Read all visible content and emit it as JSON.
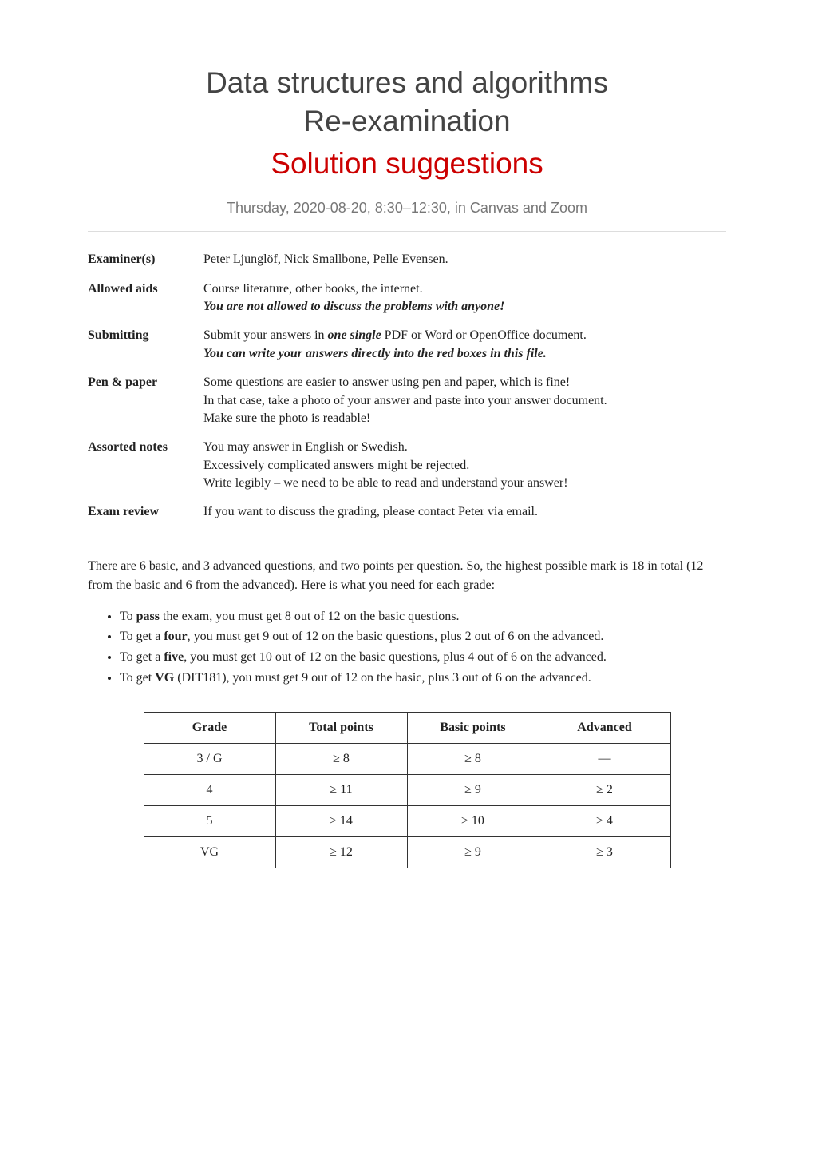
{
  "title": {
    "line1": "Data structures and algorithms",
    "line2": "Re-examination",
    "solution": "Solution suggestions"
  },
  "subtitle": "Thursday, 2020-08-20, 8:30–12:30, in Canvas and Zoom",
  "info": [
    {
      "label": "Examiner(s)",
      "lines": [
        {
          "plain": "Peter Ljunglöf, Nick Smallbone, Pelle Evensen."
        }
      ]
    },
    {
      "label": "Allowed aids",
      "lines": [
        {
          "plain": "Course literature, other books, the internet."
        },
        {
          "boldItalic": "You are not allowed to discuss the problems with anyone!"
        }
      ]
    },
    {
      "label": "Submitting",
      "lines": [
        {
          "prefix": "Submit your answers in ",
          "boldItalicInline": "one single",
          "suffix": " PDF or Word or OpenOffice document."
        },
        {
          "boldItalic": "You can write your answers directly into the red boxes in this file."
        }
      ]
    },
    {
      "label": "Pen & paper",
      "lines": [
        {
          "plain": "Some questions are easier to answer using pen and paper, which is fine!"
        },
        {
          "plain": "In that case, take a photo of your answer and paste into your answer document."
        },
        {
          "plain": "Make sure the photo is readable!"
        }
      ]
    },
    {
      "label": "Assorted notes",
      "lines": [
        {
          "plain": "You may answer in English or Swedish."
        },
        {
          "plain": "Excessively complicated answers might be rejected."
        },
        {
          "plain": "Write legibly – we need to be able to read and understand your answer!"
        }
      ]
    },
    {
      "label": "Exam review",
      "lines": [
        {
          "plain": "If you want to discuss the grading, please contact Peter via email."
        }
      ]
    }
  ],
  "description": "There are 6 basic, and 3 advanced questions, and two points per question. So, the highest possible mark is 18 in total (12 from the basic and 6 from the advanced). Here is what you need for each grade:",
  "bullets": [
    {
      "prefix": "To ",
      "bold": "pass",
      "suffix": " the exam, you must get 8 out of 12 on the basic questions."
    },
    {
      "prefix": "To get a ",
      "bold": "four",
      "suffix": ", you must get 9 out of 12 on the basic questions, plus 2 out of 6 on the advanced."
    },
    {
      "prefix": "To get a ",
      "bold": "five",
      "suffix": ", you must get 10 out of 12 on the basic questions, plus 4 out of 6 on the advanced."
    },
    {
      "prefix": "To get ",
      "bold": "VG",
      "suffix": " (DIT181), you must get  9 out of 12 on the basic, plus 3 out of 6 on the advanced."
    }
  ],
  "gradeTable": {
    "headers": [
      "Grade",
      "Total points",
      "Basic points",
      "Advanced"
    ],
    "rows": [
      [
        "3 / G",
        "≥ 8",
        "≥ 8",
        "—"
      ],
      [
        "4",
        "≥ 11",
        "≥ 9",
        "≥ 2"
      ],
      [
        "5",
        "≥ 14",
        "≥ 10",
        "≥ 4"
      ],
      [
        "VG",
        "≥ 12",
        "≥ 9",
        "≥ 3"
      ]
    ]
  }
}
